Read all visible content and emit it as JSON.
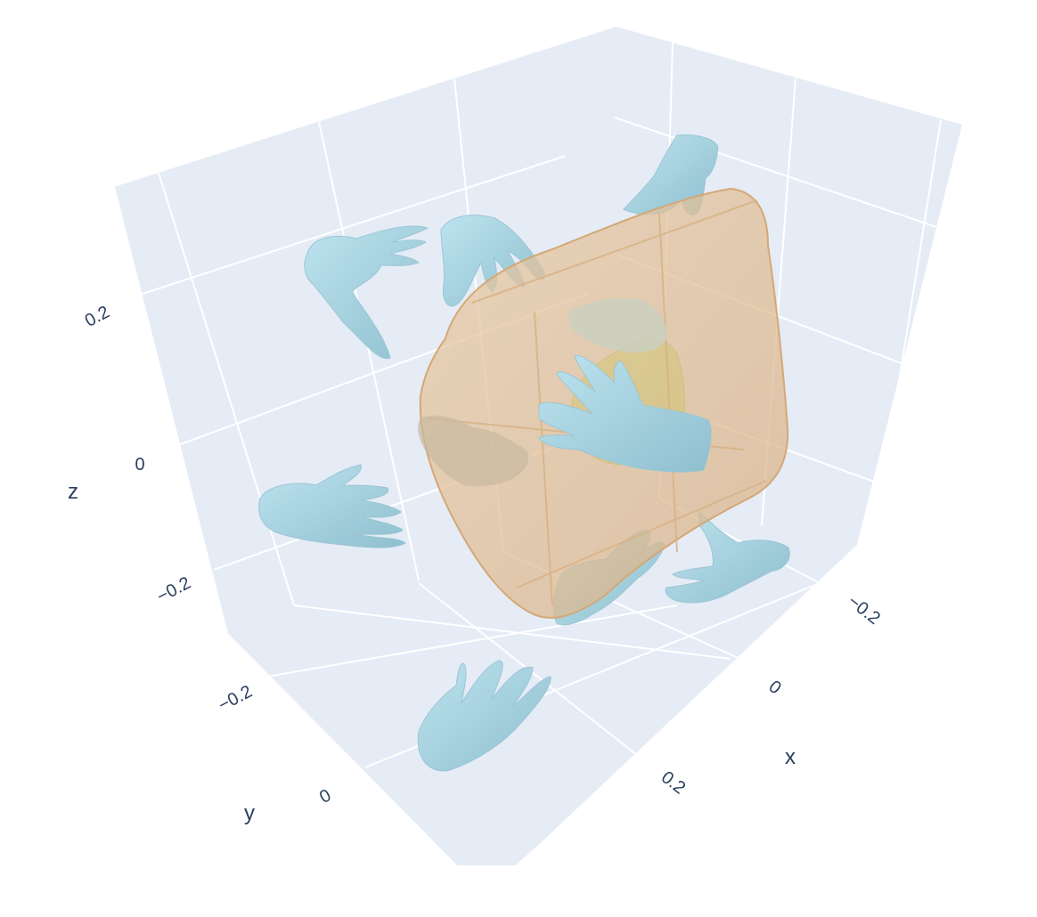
{
  "chart_data": {
    "type": "mesh3d",
    "xaxis": {
      "title": "x",
      "ticks": [
        "−0.2",
        "0",
        "0.2"
      ],
      "range": [
        -0.3,
        0.35
      ],
      "grid": true,
      "background": "#e5ecf6"
    },
    "yaxis": {
      "title": "y",
      "ticks": [
        "−0.2",
        "0"
      ],
      "range": [
        -0.3,
        0.35
      ],
      "grid": true,
      "background": "#e5ecf6"
    },
    "zaxis": {
      "title": "z",
      "ticks": [
        "−0.2",
        "0",
        "0.2"
      ],
      "range": [
        -0.3,
        0.35
      ],
      "grid": true,
      "background": "#e5ecf6"
    },
    "meshes": [
      {
        "kind": "hand",
        "color": "#add8e6",
        "count": 10
      },
      {
        "kind": "convex-hull",
        "color": "#deb887",
        "opacity": 0.7,
        "count": 1
      },
      {
        "kind": "inner-object",
        "color": "#c5e384",
        "count": 1
      }
    ]
  }
}
